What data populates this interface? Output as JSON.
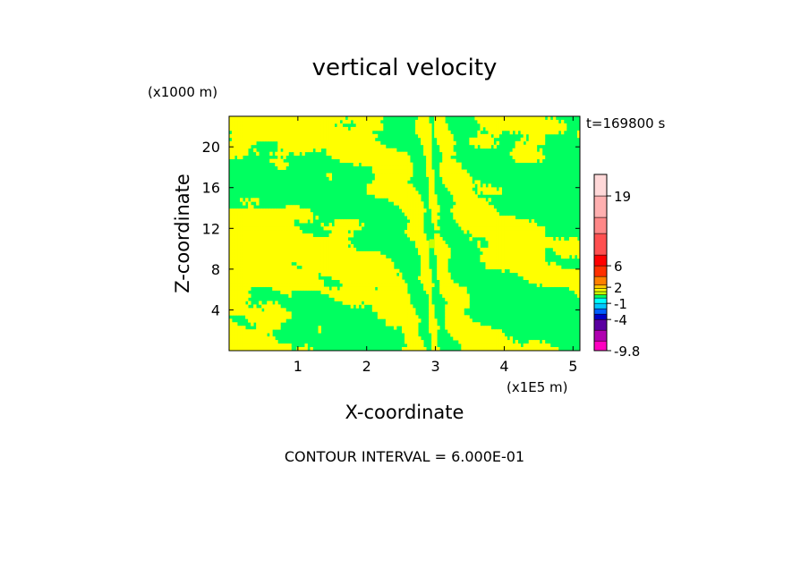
{
  "chart_data": {
    "type": "heatmap",
    "title": "vertical velocity",
    "xlabel": "X-coordinate",
    "ylabel": "Z-coordinate",
    "x_unit": "(x1E5 m)",
    "y_unit": "(x1000 m)",
    "time_label": "t=169800 s",
    "footer": "CONTOUR INTERVAL = 6.000E-01",
    "xlim": [
      0,
      5.1
    ],
    "ylim": [
      0,
      23
    ],
    "xticks": [
      1,
      2,
      3,
      4,
      5
    ],
    "yticks": [
      4,
      8,
      12,
      16,
      20
    ],
    "colorbar": {
      "labels": [
        {
          "value": 19,
          "text": "19"
        },
        {
          "value": 6,
          "text": "6"
        },
        {
          "value": 2,
          "text": "2"
        },
        {
          "value": -1,
          "text": "-1"
        },
        {
          "value": -4,
          "text": "-4"
        },
        {
          "value": -9.8,
          "text": "-9.8"
        }
      ],
      "bins": [
        {
          "color": "#ff00c0"
        },
        {
          "color": "#b000b0"
        },
        {
          "color": "#5a00a0"
        },
        {
          "color": "#0000c8"
        },
        {
          "color": "#0060ff"
        },
        {
          "color": "#00c8ff"
        },
        {
          "color": "#00ffff"
        },
        {
          "color": "#00ff60"
        },
        {
          "color": "#c8ff00"
        },
        {
          "color": "#ffff00"
        },
        {
          "color": "#ffc800"
        },
        {
          "color": "#ff8000"
        },
        {
          "color": "#ff3000"
        },
        {
          "color": "#ff0000"
        },
        {
          "color": "#ff5050"
        },
        {
          "color": "#ff8888"
        },
        {
          "color": "#ffb0b0"
        },
        {
          "color": "#ffd8d8"
        }
      ]
    },
    "field": {
      "dominant_colors": [
        "#ffff00",
        "#00ff60"
      ],
      "anomaly_color": "#c8ff00",
      "anomaly_center": [
        2.95,
        10.5
      ]
    }
  }
}
